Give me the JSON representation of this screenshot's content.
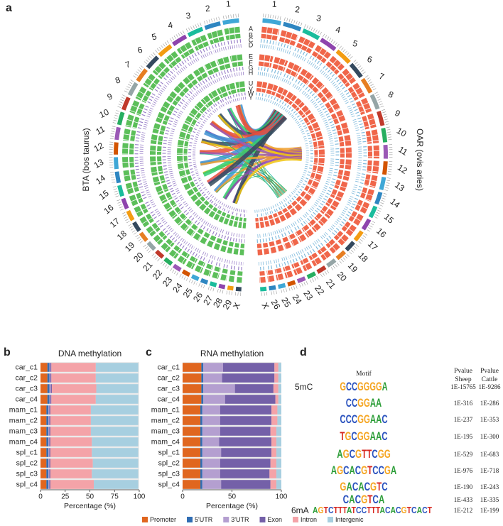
{
  "chart_data": [
    {
      "type": "circos",
      "panel": "a",
      "left_chromosomes": [
        "1",
        "2",
        "3",
        "4",
        "5",
        "6",
        "7",
        "8",
        "9",
        "10",
        "11",
        "12",
        "13",
        "14",
        "15",
        "16",
        "17",
        "18",
        "19",
        "20",
        "21",
        "22",
        "23",
        "24",
        "25",
        "26",
        "27",
        "28",
        "29",
        "X"
      ],
      "right_chromosomes": [
        "1",
        "2",
        "3",
        "4",
        "5",
        "6",
        "7",
        "8",
        "9",
        "10",
        "11",
        "12",
        "13",
        "14",
        "15",
        "16",
        "17",
        "18",
        "19",
        "20",
        "21",
        "22",
        "23",
        "24",
        "25",
        "26",
        "X"
      ],
      "track_groups": [
        [
          "A",
          "B",
          "C",
          "D"
        ],
        [
          "E",
          "F",
          "G",
          "H"
        ],
        [
          "U",
          "V",
          "W",
          "Y"
        ]
      ],
      "left_label": "BTA (bos taurus)",
      "right_label": "OAR (ovis aries)"
    },
    {
      "type": "stacked_barh",
      "panel": "b",
      "title": "DNA methylation",
      "xlabel": "Percentage (%)",
      "categories": [
        "car_c1",
        "car_c2",
        "car_c3",
        "car_c4",
        "mam_c1",
        "mam_c2",
        "mam_c3",
        "mam_c4",
        "spl_c1",
        "spl_c2",
        "spl_c3",
        "spl_c4"
      ],
      "xlim": [
        0,
        100
      ],
      "xticks": [
        0,
        25,
        50,
        75,
        100
      ],
      "series": [
        {
          "name": "Promoter",
          "color": "#e0661f",
          "values": [
            7,
            7,
            7,
            7,
            6,
            6,
            6,
            6,
            6,
            6,
            6,
            6
          ]
        },
        {
          "name": "5'UTR",
          "color": "#2f6db3",
          "values": [
            2,
            2,
            2,
            2,
            2,
            2,
            2,
            2,
            2,
            2,
            2,
            2
          ]
        },
        {
          "name": "3'UTR",
          "color": "#b49fd0",
          "values": [
            1,
            1,
            1.5,
            1,
            1,
            1,
            1,
            1,
            1,
            1,
            1,
            1
          ]
        },
        {
          "name": "Exon",
          "color": "#7460a8",
          "values": [
            1,
            1,
            1,
            1,
            1,
            1,
            1,
            1,
            1,
            1,
            1,
            1
          ]
        },
        {
          "name": "Intron",
          "color": "#f4a3a8",
          "values": [
            45,
            45,
            45,
            45,
            41,
            41,
            41,
            42,
            42,
            43,
            42,
            44
          ]
        },
        {
          "name": "Intergenic",
          "color": "#a7cfe0",
          "values": [
            43,
            43,
            42.5,
            43,
            48,
            48,
            48,
            47,
            47,
            46,
            47,
            45
          ]
        }
      ]
    },
    {
      "type": "stacked_barh",
      "panel": "c",
      "title": "RNA methylation",
      "xlabel": "Percentage (%)",
      "categories": [
        "car_c1",
        "car_c2",
        "car_c3",
        "car_c4",
        "mam_c1",
        "mam_c2",
        "mam_c3",
        "mam_c4",
        "spl_c1",
        "spl_c2",
        "spl_c3",
        "spl_c4"
      ],
      "xlim": [
        0,
        100
      ],
      "xticks": [
        0,
        50,
        100
      ],
      "series": [
        {
          "name": "Promoter",
          "color": "#e0661f",
          "values": [
            19,
            19,
            19,
            19,
            18,
            18,
            18,
            18,
            18,
            18,
            18,
            18
          ]
        },
        {
          "name": "5'UTR",
          "color": "#2f6db3",
          "values": [
            2,
            2,
            2,
            2,
            2,
            2,
            2,
            2,
            2,
            2,
            2,
            2
          ]
        },
        {
          "name": "3'UTR",
          "color": "#b49fd0",
          "values": [
            20,
            19,
            32,
            22,
            18,
            18,
            18,
            17,
            19,
            18,
            18,
            19
          ]
        },
        {
          "name": "Exon",
          "color": "#7460a8",
          "values": [
            52,
            53,
            39,
            51,
            52,
            52,
            51,
            53,
            51,
            51,
            50,
            50
          ]
        },
        {
          "name": "Intron",
          "color": "#f4a3a8",
          "values": [
            4,
            4,
            5,
            3,
            6,
            6,
            6,
            5,
            5,
            6,
            7,
            6
          ]
        },
        {
          "name": "Intergenic",
          "color": "#a7cfe0",
          "values": [
            3,
            3,
            3,
            3,
            4,
            4,
            5,
            5,
            5,
            5,
            5,
            5
          ]
        }
      ]
    }
  ],
  "motif_table": {
    "panel": "d",
    "motif_header": "Motif",
    "sheep_header": [
      "Pvalue",
      "Sheep"
    ],
    "cattle_header": [
      "Pvalue",
      "Cattle"
    ],
    "rows": [
      {
        "group": "5mC",
        "motif": "GCCGGGGA",
        "sheep": "1E-15765",
        "cattle": "1E-9286"
      },
      {
        "motif": "CCGGAA",
        "sheep": "1E-316",
        "cattle": "1E-286"
      },
      {
        "motif": "CCCGGAAC",
        "sheep": "1E-237",
        "cattle": "1E-353"
      },
      {
        "motif": "TGCGGAAC",
        "sheep": "1E-195",
        "cattle": "1E-300"
      },
      {
        "motif": "AGCGTTCGG",
        "sheep": "1E-529",
        "cattle": "1E-683"
      },
      {
        "motif": "AGCACGTCCGA",
        "sheep": "1E-976",
        "cattle": "1E-718"
      },
      {
        "motif": "GACACGTC",
        "sheep": "1E-190",
        "cattle": "1E-243"
      },
      {
        "motif": "CACGTCA",
        "sheep": "1E-433",
        "cattle": "1E-335"
      },
      {
        "group": "6mA",
        "motif": "AGTCTTTATCCTTTACACGTCACT",
        "sheep": "1E-212",
        "cattle": "1E-199"
      }
    ]
  }
}
